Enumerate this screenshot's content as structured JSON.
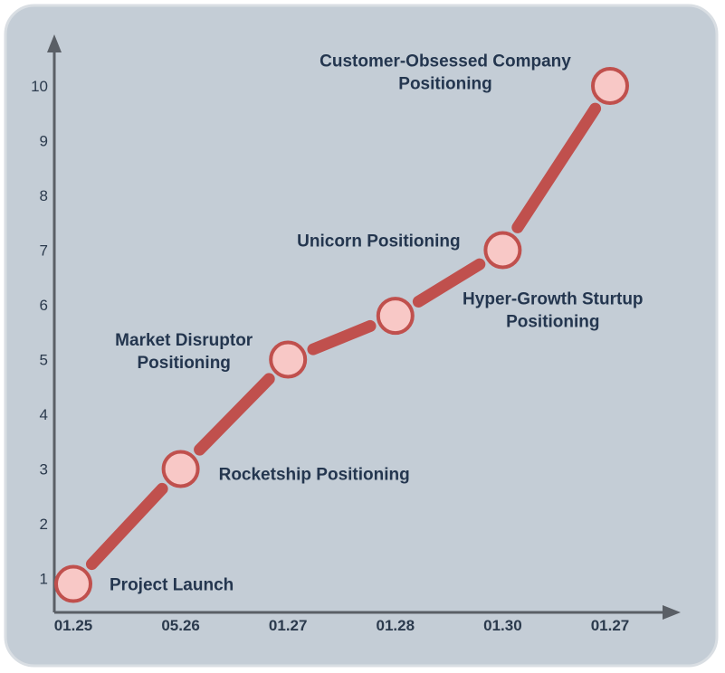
{
  "chart_data": {
    "type": "line",
    "title": "",
    "xlabel": "",
    "ylabel": "",
    "ylim": [
      0,
      11
    ],
    "yticks": [
      1,
      2,
      3,
      4,
      5,
      6,
      7,
      8,
      9,
      10
    ],
    "categories": [
      "01.25",
      "05.26",
      "01.27",
      "01.28",
      "01.30",
      "01.27"
    ],
    "points": [
      {
        "x_label": "01.25",
        "y": 0.9,
        "label": [
          "Project Launch"
        ]
      },
      {
        "x_label": "05.26",
        "y": 3.0,
        "label": [
          "Rocketship Positioning"
        ]
      },
      {
        "x_label": "01.27",
        "y": 5.0,
        "label": [
          "Market Disruptor",
          "Positioning"
        ]
      },
      {
        "x_label": "01.28",
        "y": 5.8,
        "label": [
          "Hyper-Growth Sturtup",
          "Positioning"
        ]
      },
      {
        "x_label": "01.30",
        "y": 7.0,
        "label": [
          "Unicorn Positioning"
        ]
      },
      {
        "x_label": "01.27",
        "y": 10.0,
        "label": [
          "Customer-Obsessed Company",
          "Positioning"
        ]
      }
    ]
  },
  "colors": {
    "panel": "#c4cdd6",
    "panel_border": "#d9dee3",
    "axis": "#5a5f66",
    "line": "#c0504d",
    "marker_fill": "#f8c8c6",
    "marker_stroke": "#c0504d",
    "text": "#24364f"
  }
}
